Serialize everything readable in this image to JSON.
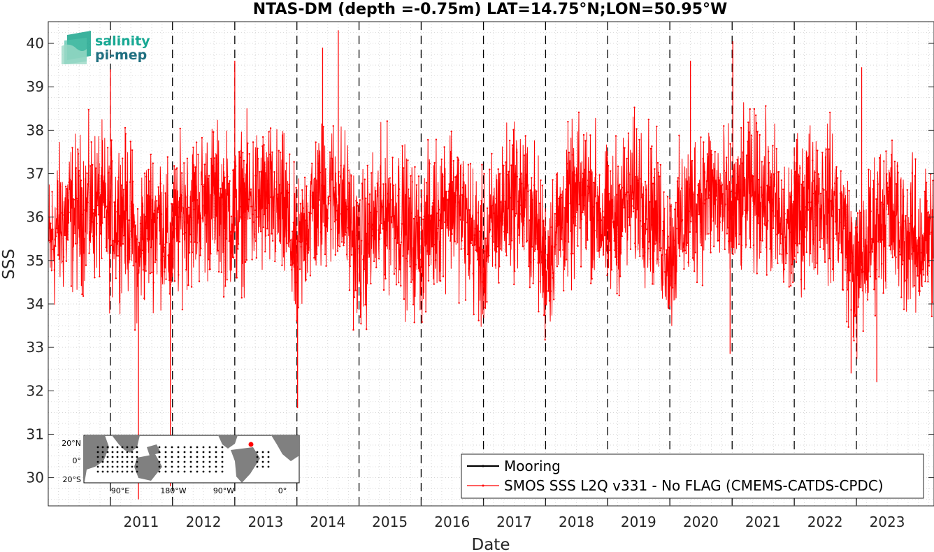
{
  "chart_data": {
    "type": "line",
    "title": "NTAS-DM (depth =-0.75m) LAT=14.75°N;LON=50.95°W",
    "xlabel": "Date",
    "ylabel": "SSS",
    "xlim": [
      "2010-01-01",
      "2024-04-01"
    ],
    "ylim": [
      29.35,
      40.5
    ],
    "yticks": [
      30,
      31,
      32,
      33,
      34,
      35,
      36,
      37,
      38,
      39,
      40
    ],
    "xticks": [
      "2011",
      "2012",
      "2013",
      "2014",
      "2015",
      "2016",
      "2017",
      "2018",
      "2019",
      "2020",
      "2021",
      "2022",
      "2023"
    ],
    "grid": true,
    "legend_position": "bottom-right",
    "year_divider_lines": [
      "2011",
      "2012",
      "2013",
      "2014",
      "2015",
      "2016",
      "2017",
      "2018",
      "2019",
      "2020",
      "2021",
      "2022",
      "2023"
    ],
    "series": [
      {
        "name": "Mooring",
        "color": "#000000",
        "style": "line",
        "values": []
      },
      {
        "name": "SMOS SSS L2Q v331 - No FLAG  (CMEMS-CATDS-CPDC)",
        "color": "#ff0000",
        "style": "line-with-dots",
        "x": [
          "2010-01-15",
          "2010-03-01",
          "2010-05-01",
          "2010-07-01",
          "2010-09-01",
          "2010-11-01",
          "2011-01-01",
          "2011-03-01",
          "2011-05-01",
          "2011-06-15",
          "2011-07-01",
          "2011-09-01",
          "2011-11-01",
          "2011-12-15",
          "2012-01-01",
          "2012-03-01",
          "2012-05-01",
          "2012-07-01",
          "2012-09-01",
          "2012-11-01",
          "2013-01-01",
          "2013-03-01",
          "2013-05-01",
          "2013-07-01",
          "2013-09-01",
          "2013-11-01",
          "2014-01-01",
          "2014-03-01",
          "2014-05-01",
          "2014-07-01",
          "2014-09-01",
          "2014-11-01",
          "2015-01-01",
          "2015-03-01",
          "2015-05-01",
          "2015-07-01",
          "2015-09-01",
          "2015-11-01",
          "2016-01-01",
          "2016-03-01",
          "2016-05-01",
          "2016-07-01",
          "2016-09-01",
          "2016-11-01",
          "2017-01-01",
          "2017-03-01",
          "2017-05-01",
          "2017-07-01",
          "2017-09-01",
          "2017-11-01",
          "2018-01-01",
          "2018-03-01",
          "2018-05-01",
          "2018-07-01",
          "2018-09-01",
          "2018-11-01",
          "2019-01-01",
          "2019-03-01",
          "2019-05-01",
          "2019-07-01",
          "2019-09-01",
          "2019-11-01",
          "2020-01-01",
          "2020-03-01",
          "2020-05-01",
          "2020-07-01",
          "2020-09-01",
          "2020-11-01",
          "2021-01-01",
          "2021-03-01",
          "2021-05-01",
          "2021-07-01",
          "2021-09-01",
          "2021-11-01",
          "2022-01-01",
          "2022-03-01",
          "2022-05-01",
          "2022-07-01",
          "2022-09-01",
          "2022-11-01",
          "2023-01-01",
          "2023-03-01",
          "2023-05-01",
          "2023-07-01",
          "2023-09-01",
          "2023-11-01",
          "2024-01-01",
          "2024-03-01"
        ],
        "values": [
          35.3,
          35.8,
          36.0,
          36.1,
          36.2,
          36.3,
          35.8,
          36.2,
          36.0,
          34.8,
          35.5,
          36.0,
          35.9,
          35.2,
          35.5,
          36.1,
          36.2,
          36.3,
          36.4,
          36.2,
          36.0,
          36.3,
          36.3,
          36.4,
          36.2,
          36.0,
          34.8,
          36.0,
          36.3,
          36.6,
          36.5,
          36.0,
          35.0,
          35.6,
          36.0,
          36.2,
          36.0,
          35.5,
          35.4,
          35.8,
          36.3,
          36.5,
          36.0,
          35.6,
          35.0,
          35.8,
          36.2,
          36.6,
          36.3,
          35.8,
          34.9,
          35.6,
          36.1,
          36.3,
          36.6,
          36.2,
          35.7,
          36.1,
          36.4,
          36.6,
          36.3,
          35.8,
          35.1,
          35.8,
          36.2,
          36.5,
          36.6,
          36.3,
          36.0,
          36.4,
          36.6,
          36.5,
          36.3,
          35.5,
          35.9,
          36.3,
          36.5,
          36.4,
          36.2,
          35.6,
          34.5,
          35.2,
          35.9,
          36.2,
          35.8,
          35.5,
          35.3,
          35.6
        ],
        "spikes": [
          {
            "x": "2011-06-15",
            "value": 29.5
          },
          {
            "x": "2011-12-20",
            "value": 29.8
          },
          {
            "x": "2014-01-05",
            "value": 31.6
          },
          {
            "x": "2014-09-01",
            "value": 40.3
          },
          {
            "x": "2014-06-01",
            "value": 39.9
          },
          {
            "x": "2013-01-01",
            "value": 39.6
          },
          {
            "x": "2011-01-01",
            "value": 39.4
          },
          {
            "x": "2020-05-01",
            "value": 39.6
          },
          {
            "x": "2021-01-05",
            "value": 40.05
          },
          {
            "x": "2023-02-01",
            "value": 39.45
          },
          {
            "x": "2023-05-01",
            "value": 32.2
          },
          {
            "x": "2022-12-01",
            "value": 32.4
          },
          {
            "x": "2020-12-20",
            "value": 32.85
          }
        ]
      }
    ],
    "inset_map": {
      "lat_labels": [
        "20°N",
        "0°",
        "20°S"
      ],
      "lon_labels": [
        "90°E",
        "180°W",
        "90°W",
        "0°"
      ],
      "marker_color": "#ff0000"
    }
  },
  "logo": {
    "line1": "salinity",
    "line2": "pi-mep"
  }
}
